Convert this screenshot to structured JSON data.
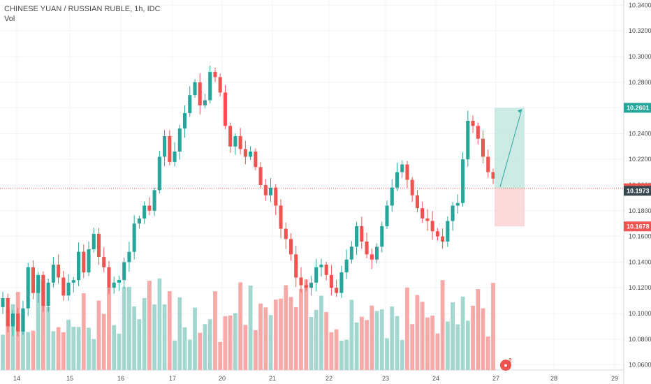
{
  "header": {
    "symbol_line": "CHINESE YUAN / RUSSIAN RUBLE, 1h, IDC",
    "indicator_line": "Vol"
  },
  "badge": {
    "count": "2"
  },
  "colors": {
    "up": "#26a69a",
    "down": "#ef5350",
    "vol_up": "#a3d6cf",
    "vol_down": "#f7a9a7",
    "grid": "#f0f3fa",
    "axis_text": "#4a4a4a",
    "target_label": "#26a69a",
    "current_label": "#ef5350",
    "stop_label": "#ef5350",
    "prev_label": "#37474f",
    "long_profit_fill": "#bfe6df",
    "long_stop_fill": "#fcd0cf"
  },
  "chart_data": {
    "type": "candlestick",
    "title": "CHINESE YUAN / RUSSIAN RUBLE, 1h, IDC",
    "ylim": [
      10.056,
      10.344
    ],
    "y_ticks": [
      "10.3400",
      "10.3200",
      "10.3000",
      "10.2800",
      "10.2600",
      "10.2400",
      "10.2200",
      "10.2000",
      "10.1800",
      "10.1600",
      "10.1400",
      "10.1200",
      "10.1000",
      "10.0800",
      "10.0600"
    ],
    "x_ticks": [
      "14",
      "15",
      "16",
      "17",
      "20",
      "21",
      "22",
      "23",
      "24",
      "27",
      "28",
      "29"
    ],
    "price_labels": {
      "target": "10.2601",
      "current": "10.1974",
      "previous": "10.1973",
      "stop": "10.1678"
    },
    "position": {
      "type": "long",
      "entry": 10.1974,
      "target": 10.2601,
      "stop": 10.1678
    },
    "ohlc_closes": [
      10.112,
      10.09,
      10.1,
      10.086,
      10.104,
      10.136,
      10.116,
      10.13,
      10.106,
      10.124,
      10.138,
      10.128,
      10.114,
      10.124,
      10.126,
      10.148,
      10.132,
      10.15,
      10.162,
      10.144,
      10.136,
      10.12,
      10.124,
      10.126,
      10.14,
      10.148,
      10.17,
      10.174,
      10.184,
      10.18,
      10.196,
      10.222,
      10.238,
      10.218,
      10.226,
      10.244,
      10.256,
      10.27,
      10.28,
      10.262,
      10.266,
      10.288,
      10.284,
      10.272,
      10.246,
      10.23,
      10.238,
      10.228,
      10.222,
      10.226,
      10.214,
      10.2,
      10.192,
      10.198,
      10.184,
      10.166,
      10.158,
      10.146,
      10.128,
      10.122,
      10.12,
      10.124,
      10.136,
      10.138,
      10.13,
      10.12,
      10.116,
      10.132,
      10.142,
      10.152,
      10.168,
      10.156,
      10.146,
      10.142,
      10.152,
      10.168,
      10.184,
      10.198,
      10.21,
      10.216,
      10.204,
      10.192,
      10.182,
      10.174,
      10.172,
      10.164,
      10.16,
      10.156,
      10.172,
      10.184,
      10.186,
      10.22,
      10.25,
      10.246,
      10.236,
      10.222,
      10.21,
      10.205
    ],
    "volume_note": "Vol"
  }
}
